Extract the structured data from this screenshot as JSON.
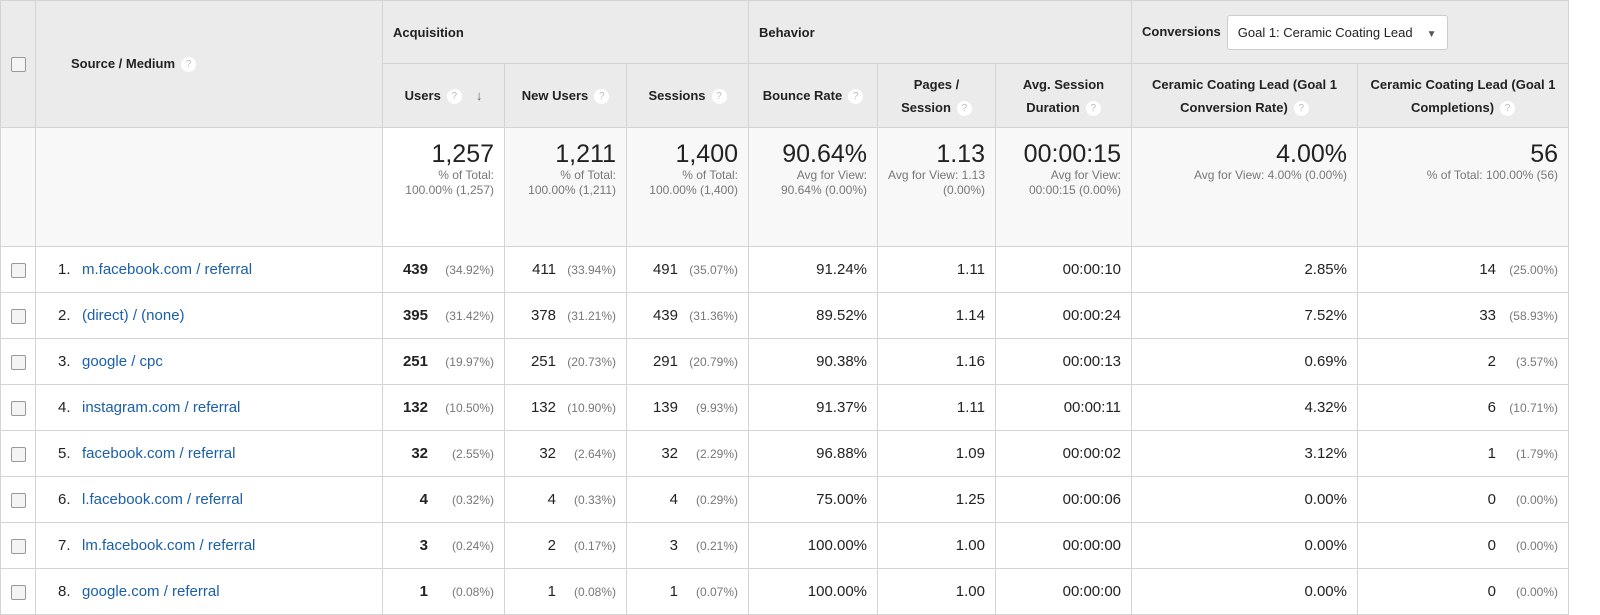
{
  "header": {
    "source_medium": "Source / Medium",
    "acquisition": "Acquisition",
    "behavior": "Behavior",
    "conversions": "Conversions",
    "goal_select": "Goal 1: Ceramic Coating Lead",
    "columns": [
      "Users",
      "New Users",
      "Sessions",
      "Bounce Rate",
      "Pages / Session",
      "Avg. Session Duration",
      "Ceramic Coating Lead (Goal 1 Conversion Rate)",
      "Ceramic Coating Lead (Goal 1 Completions)"
    ]
  },
  "totals": [
    {
      "value": "1,257",
      "sub": "% of Total: 100.00% (1,257)"
    },
    {
      "value": "1,211",
      "sub": "% of Total: 100.00% (1,211)"
    },
    {
      "value": "1,400",
      "sub": "% of Total: 100.00% (1,400)"
    },
    {
      "value": "90.64%",
      "sub": "Avg for View: 90.64% (0.00%)"
    },
    {
      "value": "1.13",
      "sub": "Avg for View: 1.13 (0.00%)"
    },
    {
      "value": "00:00:15",
      "sub": "Avg for View: 00:00:15 (0.00%)"
    },
    {
      "value": "4.00%",
      "sub": "Avg for View: 4.00% (0.00%)"
    },
    {
      "value": "56",
      "sub": "% of Total: 100.00% (56)"
    }
  ],
  "rows": [
    {
      "n": "1.",
      "src": "m.facebook.com / referral",
      "users": "439",
      "users_pct": "(34.92%)",
      "new": "411",
      "new_pct": "(33.94%)",
      "sess": "491",
      "sess_pct": "(35.07%)",
      "bounce": "91.24%",
      "pps": "1.11",
      "dur": "00:00:10",
      "cr": "2.85%",
      "comp": "14",
      "comp_pct": "(25.00%)"
    },
    {
      "n": "2.",
      "src": "(direct) / (none)",
      "users": "395",
      "users_pct": "(31.42%)",
      "new": "378",
      "new_pct": "(31.21%)",
      "sess": "439",
      "sess_pct": "(31.36%)",
      "bounce": "89.52%",
      "pps": "1.14",
      "dur": "00:00:24",
      "cr": "7.52%",
      "comp": "33",
      "comp_pct": "(58.93%)"
    },
    {
      "n": "3.",
      "src": "google / cpc",
      "users": "251",
      "users_pct": "(19.97%)",
      "new": "251",
      "new_pct": "(20.73%)",
      "sess": "291",
      "sess_pct": "(20.79%)",
      "bounce": "90.38%",
      "pps": "1.16",
      "dur": "00:00:13",
      "cr": "0.69%",
      "comp": "2",
      "comp_pct": "(3.57%)"
    },
    {
      "n": "4.",
      "src": "instagram.com / referral",
      "users": "132",
      "users_pct": "(10.50%)",
      "new": "132",
      "new_pct": "(10.90%)",
      "sess": "139",
      "sess_pct": "(9.93%)",
      "bounce": "91.37%",
      "pps": "1.11",
      "dur": "00:00:11",
      "cr": "4.32%",
      "comp": "6",
      "comp_pct": "(10.71%)"
    },
    {
      "n": "5.",
      "src": "facebook.com / referral",
      "users": "32",
      "users_pct": "(2.55%)",
      "new": "32",
      "new_pct": "(2.64%)",
      "sess": "32",
      "sess_pct": "(2.29%)",
      "bounce": "96.88%",
      "pps": "1.09",
      "dur": "00:00:02",
      "cr": "3.12%",
      "comp": "1",
      "comp_pct": "(1.79%)"
    },
    {
      "n": "6.",
      "src": "l.facebook.com / referral",
      "users": "4",
      "users_pct": "(0.32%)",
      "new": "4",
      "new_pct": "(0.33%)",
      "sess": "4",
      "sess_pct": "(0.29%)",
      "bounce": "75.00%",
      "pps": "1.25",
      "dur": "00:00:06",
      "cr": "0.00%",
      "comp": "0",
      "comp_pct": "(0.00%)"
    },
    {
      "n": "7.",
      "src": "lm.facebook.com / referral",
      "users": "3",
      "users_pct": "(0.24%)",
      "new": "2",
      "new_pct": "(0.17%)",
      "sess": "3",
      "sess_pct": "(0.21%)",
      "bounce": "100.00%",
      "pps": "1.00",
      "dur": "00:00:00",
      "cr": "0.00%",
      "comp": "0",
      "comp_pct": "(0.00%)"
    },
    {
      "n": "8.",
      "src": "google.com / referral",
      "users": "1",
      "users_pct": "(0.08%)",
      "new": "1",
      "new_pct": "(0.08%)",
      "sess": "1",
      "sess_pct": "(0.07%)",
      "bounce": "100.00%",
      "pps": "1.00",
      "dur": "00:00:00",
      "cr": "0.00%",
      "comp": "0",
      "comp_pct": "(0.00%)"
    }
  ]
}
